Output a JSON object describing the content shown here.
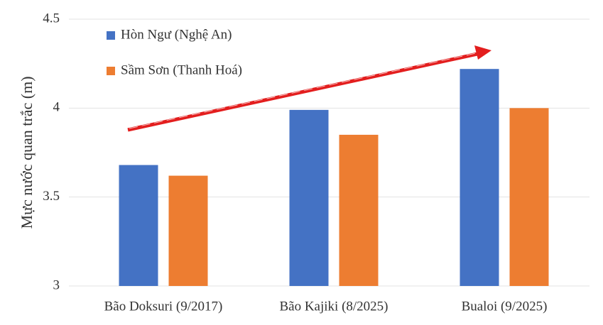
{
  "chart_data": {
    "type": "bar",
    "y_label": "Mực nước quan trắc (m)",
    "categories": [
      "Bão Doksuri (9/2017)",
      "Bão Kajiki (8/2025)",
      "Bualoi (9/2025)"
    ],
    "series": [
      {
        "name": "Hòn Ngư (Nghệ An)",
        "color": "#4472c4",
        "values": [
          3.68,
          3.99,
          4.22
        ]
      },
      {
        "name": "Sầm Sơn (Thanh Hoá)",
        "color": "#ed7d31",
        "values": [
          3.62,
          3.85,
          4.0
        ]
      }
    ],
    "ylim": [
      3,
      4.5
    ],
    "yticks": [
      3,
      3.5,
      4,
      4.5
    ],
    "grid": true
  }
}
